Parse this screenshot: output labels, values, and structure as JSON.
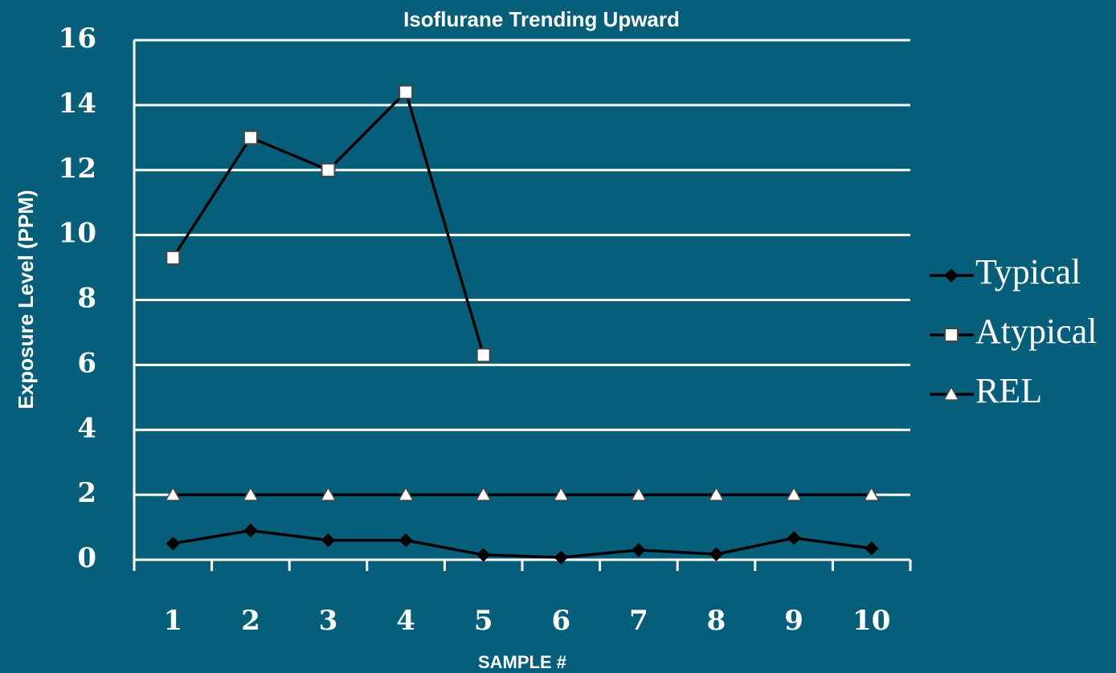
{
  "chart_data": {
    "type": "line",
    "title": "Isoflurane Trending Upward",
    "x_label": "SAMPLE #",
    "y_label": "Exposure Level (PPM)",
    "categories": [
      "1",
      "2",
      "3",
      "4",
      "5",
      "6",
      "7",
      "8",
      "9",
      "10"
    ],
    "series": [
      {
        "name": "Typical",
        "color": "#000000",
        "marker": "diamond",
        "values": [
          0.5,
          0.9,
          0.6,
          0.6,
          0.15,
          0.07,
          0.3,
          0.17,
          0.67,
          0.35
        ]
      },
      {
        "name": "Atypical",
        "color": "#000000",
        "marker": "square",
        "values": [
          9.3,
          13.0,
          12.0,
          14.4,
          6.3,
          null,
          null,
          null,
          null,
          null
        ]
      },
      {
        "name": "REL",
        "color": "#000000",
        "marker": "triangle",
        "values": [
          2,
          2,
          2,
          2,
          2,
          2,
          2,
          2,
          2,
          2
        ]
      }
    ],
    "ylim": [
      0,
      16
    ],
    "yticks": [
      0,
      2,
      4,
      6,
      8,
      10,
      12,
      14,
      16
    ],
    "grid": true,
    "legend": "right"
  }
}
